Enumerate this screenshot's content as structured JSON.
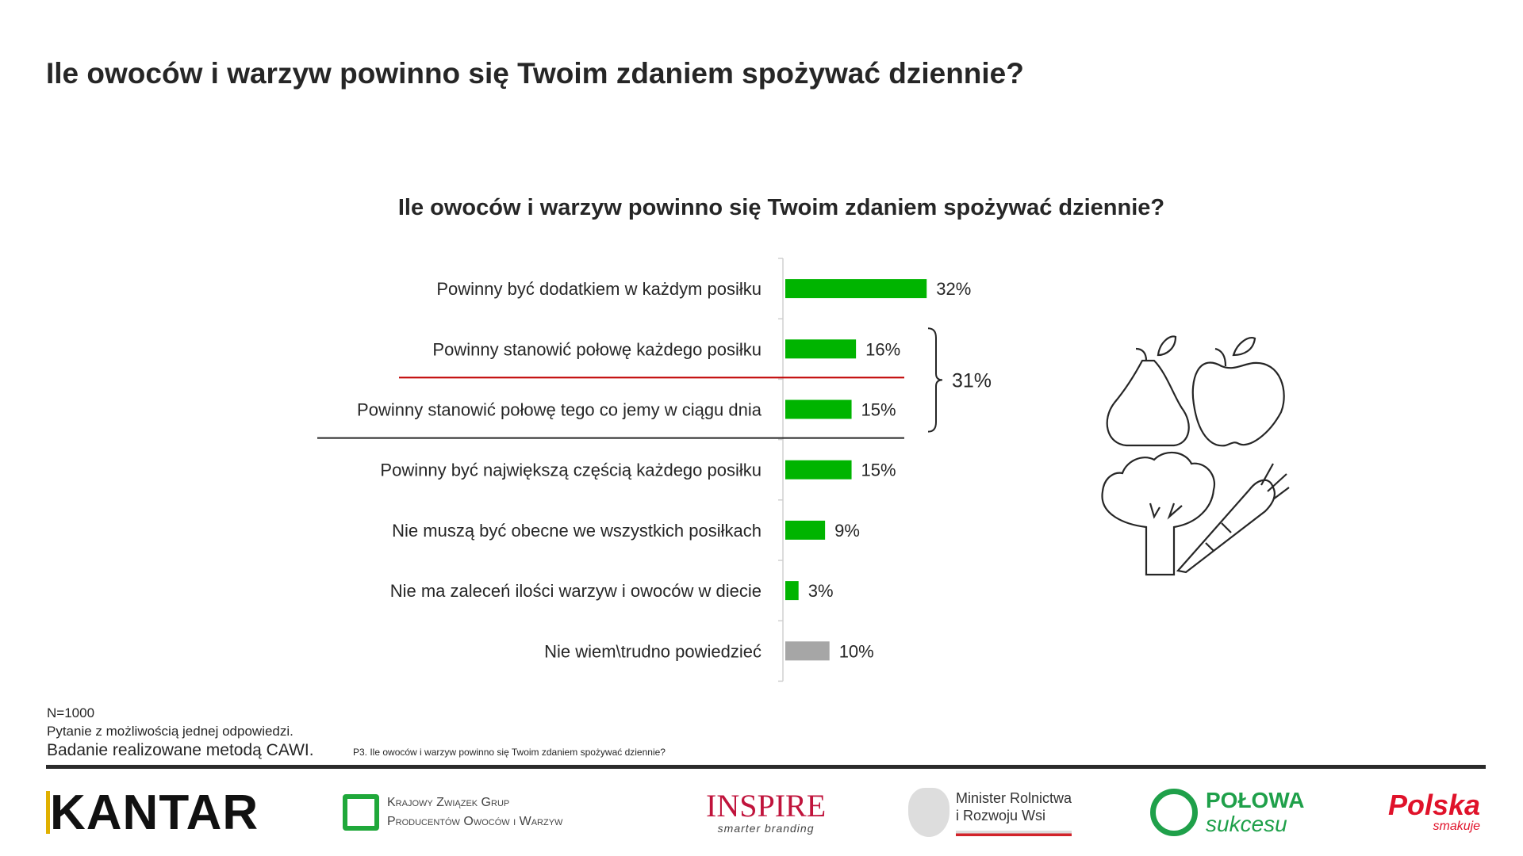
{
  "page": {
    "title": "Ile owoców i warzyw powinno się Twoim zdaniem spożywać dziennie?"
  },
  "chart_data": {
    "type": "bar",
    "orientation": "horizontal",
    "title": "Ile owoców i warzyw powinno się Twoim zdaniem spożywać dziennie?",
    "categories": [
      "Powinny być dodatkiem w każdym posiłku",
      "Powinny stanowić połowę każdego posiłku",
      "Powinny stanowić połowę tego co jemy w ciągu dnia",
      "Powinny być największą częścią każdego posiłku",
      "Nie muszą być obecne we wszystkich posiłkach",
      "Nie ma zaleceń ilości warzyw i owoców w diecie",
      "Nie wiem\\trudno powiedzieć"
    ],
    "values": [
      32,
      16,
      15,
      15,
      9,
      3,
      10
    ],
    "value_labels": [
      "32%",
      "16%",
      "15%",
      "15%",
      "9%",
      "3%",
      "10%"
    ],
    "bar_colors": [
      "#00b400",
      "#00b400",
      "#00b400",
      "#00b400",
      "#00b400",
      "#00b400",
      "#a6a6a6"
    ],
    "unit": "%",
    "grid": false,
    "annotation": {
      "label": "31%",
      "groups_categories": [
        1,
        2
      ]
    },
    "highlight_underlines": [
      {
        "category": 1,
        "color": "#c00000"
      },
      {
        "category": 2,
        "color": "#262626"
      }
    ]
  },
  "illustration": {
    "icons": [
      "pear-icon",
      "apple-icon",
      "broccoli-icon",
      "carrot-icon"
    ]
  },
  "footer": {
    "sample": "N=1000",
    "question_type": "Pytanie z możliwością jednej odpowiedzi.",
    "method": "Badanie realizowane metodą CAWI.",
    "question_ref": "P3. Ile owoców i warzyw powinno się Twoim zdaniem spożywać dziennie?"
  },
  "logos": {
    "kantar": "KANTAR",
    "kzgp_line1": "Krajowy Związek Grup",
    "kzgp_line2": "Producentów Owoców i Warzyw",
    "inspire": "INSPIRE",
    "inspire_tag": "smarter branding",
    "ministry_line1": "Minister Rolnictwa",
    "ministry_line2": "i Rozwoju Wsi",
    "polowa_line1": "POŁOWA",
    "polowa_line2": "sukcesu",
    "polska_line1": "Polska",
    "polska_line2": "smakuje"
  }
}
